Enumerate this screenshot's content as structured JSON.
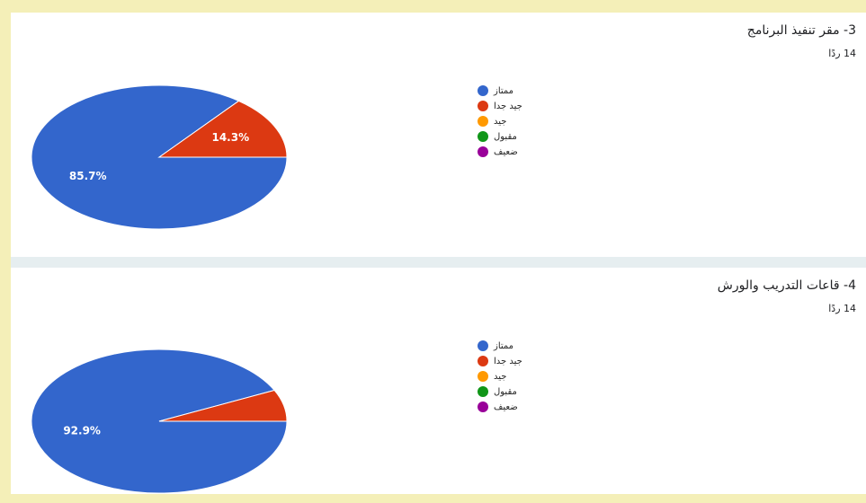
{
  "chart_data": [
    {
      "type": "pie",
      "title": "3- مقر تنفيذ البرنامج",
      "subtitle": "14 ردًا",
      "categories": [
        "ممتاز",
        "جيد جدا",
        "جيد",
        "مقبول",
        "ضعيف"
      ],
      "values": [
        85.7,
        14.3,
        0,
        0,
        0
      ],
      "value_labels": [
        "85.7%",
        "14.3%",
        null,
        null,
        null
      ],
      "colors": [
        "#3366cc",
        "#dc3912",
        "#ff9900",
        "#109618",
        "#990099"
      ]
    },
    {
      "type": "pie",
      "title": "4- قاعات التدريب والورش",
      "subtitle": "14 ردًا",
      "categories": [
        "ممتاز",
        "جيد جدا",
        "جيد",
        "مقبول",
        "ضعيف"
      ],
      "values": [
        92.9,
        7.1,
        0,
        0,
        0
      ],
      "value_labels": [
        "92.9%",
        null,
        null,
        null,
        null
      ],
      "colors": [
        "#3366cc",
        "#dc3912",
        "#ff9900",
        "#109618",
        "#990099"
      ]
    }
  ]
}
